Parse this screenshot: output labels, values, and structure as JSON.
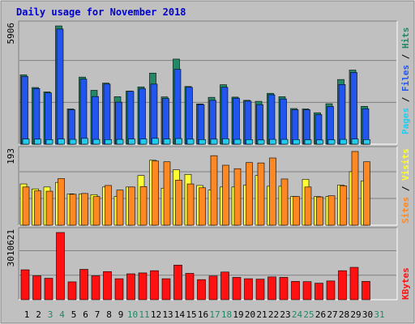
{
  "chart_data": [
    {
      "type": "bar",
      "title": "Daily usage for November 2018",
      "categories": [
        "1",
        "2",
        "3",
        "4",
        "5",
        "6",
        "7",
        "8",
        "9",
        "10",
        "11",
        "12",
        "13",
        "14",
        "15",
        "16",
        "17",
        "18",
        "19",
        "20",
        "21",
        "22",
        "23",
        "24",
        "25",
        "26",
        "27",
        "28",
        "29",
        "30",
        "31"
      ],
      "weekend_days": [
        "3",
        "4",
        "10",
        "11",
        "17",
        "18",
        "24",
        "25",
        "31"
      ],
      "ymax_label": "5906",
      "ymax": 5906,
      "series": [
        {
          "name": "Hits",
          "color": "#228866",
          "values": [
            3460,
            2830,
            2610,
            5906,
            1760,
            3350,
            2690,
            3050,
            2370,
            2650,
            2860,
            3550,
            2360,
            4250,
            2880,
            2010,
            2340,
            2970,
            2350,
            2190,
            2140,
            2540,
            2370,
            1780,
            1760,
            1570,
            2020,
            3230,
            3700,
            1890,
            0
          ]
        },
        {
          "name": "Files",
          "color": "#2255ee",
          "values": [
            3380,
            2780,
            2560,
            5750,
            1720,
            3250,
            2380,
            3000,
            2100,
            2640,
            2770,
            3000,
            2280,
            3740,
            2840,
            1980,
            2190,
            2840,
            2300,
            2150,
            1980,
            2470,
            2260,
            1720,
            1720,
            1480,
            1880,
            2980,
            3580,
            1770,
            0
          ]
        },
        {
          "name": "Pages",
          "color": "#22ccee",
          "values": [
            260,
            250,
            230,
            260,
            240,
            290,
            240,
            230,
            240,
            260,
            260,
            290,
            260,
            280,
            250,
            230,
            250,
            270,
            240,
            230,
            210,
            240,
            240,
            230,
            220,
            210,
            220,
            240,
            260,
            230,
            0
          ]
        }
      ]
    },
    {
      "type": "bar",
      "ymax_label": "193",
      "ymax": 193,
      "series": [
        {
          "name": "Visits",
          "color": "#ffff33",
          "values": [
            108,
            95,
            100,
            112,
            82,
            82,
            80,
            100,
            75,
            100,
            130,
            170,
            97,
            145,
            133,
            104,
            92,
            100,
            100,
            105,
            130,
            102,
            102,
            75,
            120,
            75,
            75,
            105,
            140,
            116,
            0
          ]
        },
        {
          "name": "Sites",
          "color": "#ff8822",
          "values": [
            100,
            90,
            89,
            122,
            81,
            83,
            75,
            104,
            92,
            100,
            101,
            168,
            166,
            118,
            108,
            98,
            182,
            157,
            148,
            164,
            163,
            176,
            121,
            75,
            100,
            74,
            77,
            103,
            193,
            166,
            0
          ]
        }
      ]
    },
    {
      "type": "bar",
      "ymax_label": "3010621",
      "ymax": 3010621,
      "series": [
        {
          "name": "KBytes",
          "color": "#ff1111",
          "values": [
            1340000,
            1070000,
            960000,
            3010621,
            800000,
            1360000,
            1070000,
            1260000,
            940000,
            1160000,
            1200000,
            1300000,
            940000,
            1550000,
            1180000,
            900000,
            1060000,
            1240000,
            1000000,
            940000,
            920000,
            1020000,
            1000000,
            820000,
            810000,
            740000,
            840000,
            1300000,
            1450000,
            820000,
            0
          ]
        }
      ]
    }
  ]
}
